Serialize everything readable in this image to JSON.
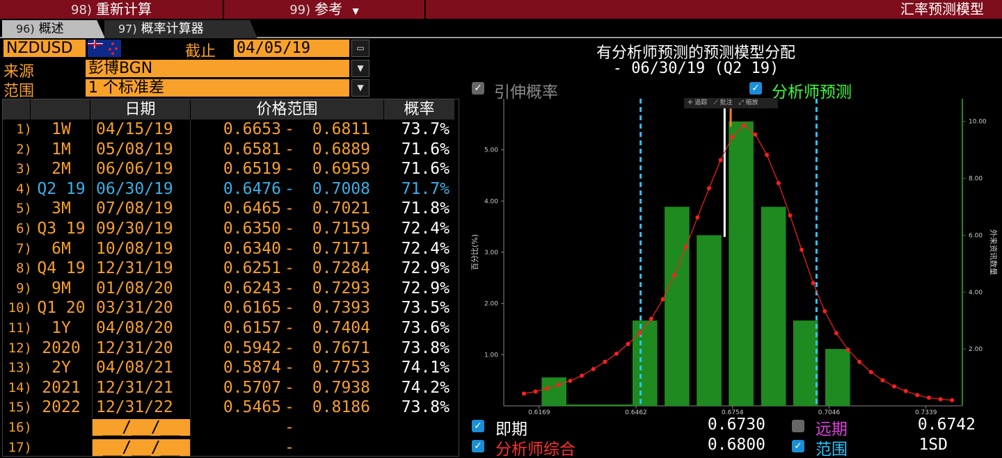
{
  "topbar": {
    "btn1_num": "98)",
    "btn1_label": "重新计算",
    "btn2_num": "99)",
    "btn2_label": "参考",
    "title": "汇率预测模型"
  },
  "tabs": [
    {
      "num": "96)",
      "label": "概述"
    },
    {
      "num": "97)",
      "label": "概率计算器"
    }
  ],
  "header": {
    "ticker": "NZDUSD",
    "asof_label": "截止",
    "asof_value": "04/05/19",
    "source_label": "来源",
    "source_value": "彭博BGN",
    "range_label": "范围",
    "range_value": "1 个标准差"
  },
  "table": {
    "col_date": "日期",
    "col_range": "价格范围",
    "col_prob": "概率",
    "rows": [
      {
        "idx": "1)",
        "label": "1W",
        "date": "04/15/19",
        "lo": "0.6653",
        "hi": "0.6811",
        "prob": "73.7%"
      },
      {
        "idx": "2)",
        "label": "1M",
        "date": "05/08/19",
        "lo": "0.6581",
        "hi": "0.6889",
        "prob": "71.6%"
      },
      {
        "idx": "3)",
        "label": "2M",
        "date": "06/06/19",
        "lo": "0.6519",
        "hi": "0.6959",
        "prob": "71.6%"
      },
      {
        "idx": "4)",
        "label": "Q2 19",
        "date": "06/30/19",
        "lo": "0.6476",
        "hi": "0.7008",
        "prob": "71.7%"
      },
      {
        "idx": "5)",
        "label": "3M",
        "date": "07/08/19",
        "lo": "0.6465",
        "hi": "0.7021",
        "prob": "71.8%"
      },
      {
        "idx": "6)",
        "label": "Q3 19",
        "date": "09/30/19",
        "lo": "0.6350",
        "hi": "0.7159",
        "prob": "72.4%"
      },
      {
        "idx": "7)",
        "label": "6M",
        "date": "10/08/19",
        "lo": "0.6340",
        "hi": "0.7171",
        "prob": "72.4%"
      },
      {
        "idx": "8)",
        "label": "Q4 19",
        "date": "12/31/19",
        "lo": "0.6251",
        "hi": "0.7284",
        "prob": "72.9%"
      },
      {
        "idx": "9)",
        "label": "9M",
        "date": "01/08/20",
        "lo": "0.6243",
        "hi": "0.7293",
        "prob": "72.9%"
      },
      {
        "idx": "10)",
        "label": "Q1 20",
        "date": "03/31/20",
        "lo": "0.6165",
        "hi": "0.7393",
        "prob": "73.5%"
      },
      {
        "idx": "11)",
        "label": "1Y",
        "date": "04/08/20",
        "lo": "0.6157",
        "hi": "0.7404",
        "prob": "73.6%"
      },
      {
        "idx": "12)",
        "label": "2020",
        "date": "12/31/20",
        "lo": "0.5942",
        "hi": "0.7671",
        "prob": "73.8%"
      },
      {
        "idx": "13)",
        "label": "2Y",
        "date": "04/08/21",
        "lo": "0.5874",
        "hi": "0.7753",
        "prob": "74.1%"
      },
      {
        "idx": "14)",
        "label": "2021",
        "date": "12/31/21",
        "lo": "0.5707",
        "hi": "0.7938",
        "prob": "74.2%"
      },
      {
        "idx": "15)",
        "label": "2022",
        "date": "12/31/22",
        "lo": "0.5465",
        "hi": "0.8186",
        "prob": "73.8%"
      },
      {
        "idx": "16)",
        "label": "",
        "date": "__/__/__",
        "lo": "",
        "hi": "",
        "prob": "",
        "dash": "-"
      },
      {
        "idx": "17)",
        "label": "",
        "date": "__/__/__",
        "lo": "",
        "hi": "",
        "prob": "",
        "dash": "-"
      }
    ],
    "highlight_row": 3
  },
  "panel": {
    "title_line1": "有分析师预测的预测模型分配",
    "title_line2": "-  06/30/19 (Q2 19)",
    "cb_implied": "引伸概率",
    "cb_analyst": "分析师预测",
    "toolbar": [
      "追踪",
      "批注",
      "缩放"
    ],
    "legend": {
      "spot_label": "即期",
      "spot_value": "0.6730",
      "fwd_label": "远期",
      "fwd_value": "0.6742",
      "consensus_label": "分析师综合",
      "consensus_value": "0.6800",
      "range_label": "范围",
      "range_value": "1SD"
    }
  },
  "colors": {
    "orange": "#f7a02a",
    "highlight": "#3ab0e6",
    "bar": "#1f8a1f",
    "curve": "#ff2020",
    "magenta": "#e040e0",
    "green_text": "#3cff3c",
    "red_text": "#ff3030",
    "cyan_text": "#27c8ff"
  },
  "chart_data": {
    "type": "bar",
    "ylabel": "百分比(%)",
    "y2label": "外来资讯数量",
    "x_ticks": [
      "0.6169",
      "0.6462",
      "0.6754",
      "0.7046",
      "0.7339"
    ],
    "y_ticks": [
      "1.00",
      "2.00",
      "3.00",
      "4.00",
      "5.00"
    ],
    "y2_ticks": [
      "2.00",
      "4.00",
      "6.00",
      "8.00",
      "10.00"
    ],
    "ylim": [
      0,
      6.0
    ],
    "y2lim": [
      0,
      10.8
    ],
    "xlim": [
      0.6062,
      0.7447
    ],
    "bars": [
      {
        "x": 0.6214,
        "value": 1.0
      },
      {
        "x": 0.6489,
        "value": 3.0
      },
      {
        "x": 0.6586,
        "value": 7.0
      },
      {
        "x": 0.6683,
        "value": 6.0
      },
      {
        "x": 0.678,
        "value": 10.0
      },
      {
        "x": 0.6878,
        "value": 7.0
      },
      {
        "x": 0.6975,
        "value": 3.0
      },
      {
        "x": 0.7072,
        "value": 2.0
      }
    ],
    "bar_width": 0.0075,
    "curve": [
      [
        0.6123,
        0.24
      ],
      [
        0.6158,
        0.28
      ],
      [
        0.6193,
        0.34
      ],
      [
        0.6228,
        0.41
      ],
      [
        0.6263,
        0.49
      ],
      [
        0.6298,
        0.59
      ],
      [
        0.6333,
        0.72
      ],
      [
        0.6368,
        0.86
      ],
      [
        0.6403,
        1.02
      ],
      [
        0.6438,
        1.21
      ],
      [
        0.6473,
        1.42
      ],
      [
        0.6508,
        1.7
      ],
      [
        0.6543,
        2.08
      ],
      [
        0.6578,
        2.55
      ],
      [
        0.6613,
        3.1
      ],
      [
        0.6648,
        3.68
      ],
      [
        0.6683,
        4.25
      ],
      [
        0.6718,
        4.8
      ],
      [
        0.6753,
        5.25
      ],
      [
        0.6788,
        5.48
      ],
      [
        0.6823,
        5.3
      ],
      [
        0.6858,
        4.9
      ],
      [
        0.6893,
        4.35
      ],
      [
        0.6928,
        3.72
      ],
      [
        0.6963,
        3.05
      ],
      [
        0.6998,
        2.4
      ],
      [
        0.7033,
        1.85
      ],
      [
        0.7068,
        1.42
      ],
      [
        0.7103,
        1.1
      ],
      [
        0.7138,
        0.86
      ],
      [
        0.7173,
        0.66
      ],
      [
        0.7208,
        0.5
      ],
      [
        0.7243,
        0.38
      ],
      [
        0.7278,
        0.29
      ],
      [
        0.7313,
        0.21
      ],
      [
        0.7348,
        0.16
      ],
      [
        0.7383,
        0.13
      ],
      [
        0.7418,
        0.11
      ]
    ],
    "range_lines": [
      0.6476,
      0.7008
    ],
    "spot": 0.673,
    "forward": 0.6742
  }
}
